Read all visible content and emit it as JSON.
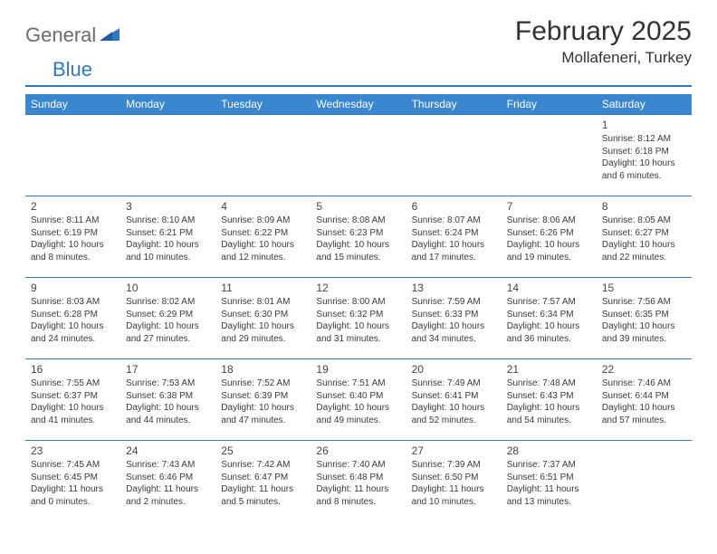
{
  "logo": {
    "text1": "General",
    "text2": "Blue"
  },
  "title": "February 2025",
  "location": "Mollafeneri, Turkey",
  "colors": {
    "header_bg": "#3a86cf",
    "header_text": "#ffffff",
    "divider": "#2f78c2",
    "row_border": "#2f78c2",
    "body_text": "#3a3a3a",
    "title_text": "#323232",
    "logo_gray": "#6b6b6b",
    "logo_blue": "#2f78c2",
    "background": "#ffffff"
  },
  "day_headers": [
    "Sunday",
    "Monday",
    "Tuesday",
    "Wednesday",
    "Thursday",
    "Friday",
    "Saturday"
  ],
  "weeks": [
    [
      null,
      null,
      null,
      null,
      null,
      null,
      {
        "d": "1",
        "sr": "Sunrise: 8:12 AM",
        "ss": "Sunset: 6:18 PM",
        "dl": "Daylight: 10 hours and 6 minutes."
      }
    ],
    [
      {
        "d": "2",
        "sr": "Sunrise: 8:11 AM",
        "ss": "Sunset: 6:19 PM",
        "dl": "Daylight: 10 hours and 8 minutes."
      },
      {
        "d": "3",
        "sr": "Sunrise: 8:10 AM",
        "ss": "Sunset: 6:21 PM",
        "dl": "Daylight: 10 hours and 10 minutes."
      },
      {
        "d": "4",
        "sr": "Sunrise: 8:09 AM",
        "ss": "Sunset: 6:22 PM",
        "dl": "Daylight: 10 hours and 12 minutes."
      },
      {
        "d": "5",
        "sr": "Sunrise: 8:08 AM",
        "ss": "Sunset: 6:23 PM",
        "dl": "Daylight: 10 hours and 15 minutes."
      },
      {
        "d": "6",
        "sr": "Sunrise: 8:07 AM",
        "ss": "Sunset: 6:24 PM",
        "dl": "Daylight: 10 hours and 17 minutes."
      },
      {
        "d": "7",
        "sr": "Sunrise: 8:06 AM",
        "ss": "Sunset: 6:26 PM",
        "dl": "Daylight: 10 hours and 19 minutes."
      },
      {
        "d": "8",
        "sr": "Sunrise: 8:05 AM",
        "ss": "Sunset: 6:27 PM",
        "dl": "Daylight: 10 hours and 22 minutes."
      }
    ],
    [
      {
        "d": "9",
        "sr": "Sunrise: 8:03 AM",
        "ss": "Sunset: 6:28 PM",
        "dl": "Daylight: 10 hours and 24 minutes."
      },
      {
        "d": "10",
        "sr": "Sunrise: 8:02 AM",
        "ss": "Sunset: 6:29 PM",
        "dl": "Daylight: 10 hours and 27 minutes."
      },
      {
        "d": "11",
        "sr": "Sunrise: 8:01 AM",
        "ss": "Sunset: 6:30 PM",
        "dl": "Daylight: 10 hours and 29 minutes."
      },
      {
        "d": "12",
        "sr": "Sunrise: 8:00 AM",
        "ss": "Sunset: 6:32 PM",
        "dl": "Daylight: 10 hours and 31 minutes."
      },
      {
        "d": "13",
        "sr": "Sunrise: 7:59 AM",
        "ss": "Sunset: 6:33 PM",
        "dl": "Daylight: 10 hours and 34 minutes."
      },
      {
        "d": "14",
        "sr": "Sunrise: 7:57 AM",
        "ss": "Sunset: 6:34 PM",
        "dl": "Daylight: 10 hours and 36 minutes."
      },
      {
        "d": "15",
        "sr": "Sunrise: 7:56 AM",
        "ss": "Sunset: 6:35 PM",
        "dl": "Daylight: 10 hours and 39 minutes."
      }
    ],
    [
      {
        "d": "16",
        "sr": "Sunrise: 7:55 AM",
        "ss": "Sunset: 6:37 PM",
        "dl": "Daylight: 10 hours and 41 minutes."
      },
      {
        "d": "17",
        "sr": "Sunrise: 7:53 AM",
        "ss": "Sunset: 6:38 PM",
        "dl": "Daylight: 10 hours and 44 minutes."
      },
      {
        "d": "18",
        "sr": "Sunrise: 7:52 AM",
        "ss": "Sunset: 6:39 PM",
        "dl": "Daylight: 10 hours and 47 minutes."
      },
      {
        "d": "19",
        "sr": "Sunrise: 7:51 AM",
        "ss": "Sunset: 6:40 PM",
        "dl": "Daylight: 10 hours and 49 minutes."
      },
      {
        "d": "20",
        "sr": "Sunrise: 7:49 AM",
        "ss": "Sunset: 6:41 PM",
        "dl": "Daylight: 10 hours and 52 minutes."
      },
      {
        "d": "21",
        "sr": "Sunrise: 7:48 AM",
        "ss": "Sunset: 6:43 PM",
        "dl": "Daylight: 10 hours and 54 minutes."
      },
      {
        "d": "22",
        "sr": "Sunrise: 7:46 AM",
        "ss": "Sunset: 6:44 PM",
        "dl": "Daylight: 10 hours and 57 minutes."
      }
    ],
    [
      {
        "d": "23",
        "sr": "Sunrise: 7:45 AM",
        "ss": "Sunset: 6:45 PM",
        "dl": "Daylight: 11 hours and 0 minutes."
      },
      {
        "d": "24",
        "sr": "Sunrise: 7:43 AM",
        "ss": "Sunset: 6:46 PM",
        "dl": "Daylight: 11 hours and 2 minutes."
      },
      {
        "d": "25",
        "sr": "Sunrise: 7:42 AM",
        "ss": "Sunset: 6:47 PM",
        "dl": "Daylight: 11 hours and 5 minutes."
      },
      {
        "d": "26",
        "sr": "Sunrise: 7:40 AM",
        "ss": "Sunset: 6:48 PM",
        "dl": "Daylight: 11 hours and 8 minutes."
      },
      {
        "d": "27",
        "sr": "Sunrise: 7:39 AM",
        "ss": "Sunset: 6:50 PM",
        "dl": "Daylight: 11 hours and 10 minutes."
      },
      {
        "d": "28",
        "sr": "Sunrise: 7:37 AM",
        "ss": "Sunset: 6:51 PM",
        "dl": "Daylight: 11 hours and 13 minutes."
      },
      null
    ]
  ]
}
